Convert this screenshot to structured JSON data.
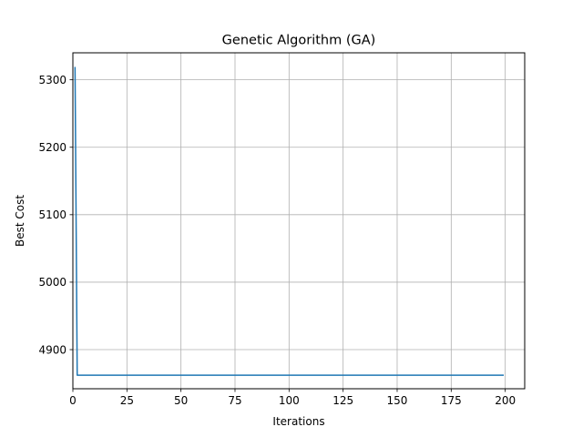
{
  "chart_data": {
    "type": "line",
    "title": "Genetic Algorithm (GA)",
    "xlabel": "Iterations",
    "ylabel": "Best Cost",
    "xlim": [
      0,
      209
    ],
    "ylim": [
      4842,
      5340
    ],
    "xticks": [
      0,
      25,
      50,
      75,
      100,
      125,
      150,
      175,
      200
    ],
    "yticks": [
      4900,
      5000,
      5100,
      5200,
      5300
    ],
    "grid": true,
    "legend": null,
    "series": [
      {
        "color": "#1f77b4",
        "x": [
          1,
          2,
          3,
          199
        ],
        "y": [
          5318,
          4862,
          4862,
          4862
        ]
      }
    ]
  }
}
